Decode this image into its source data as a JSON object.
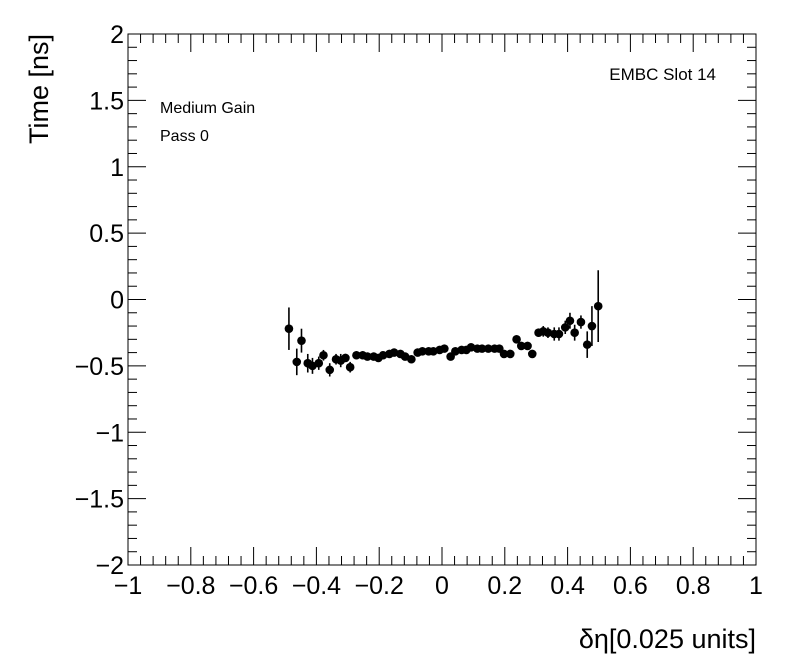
{
  "chart_data": {
    "type": "scatter",
    "title": "",
    "xlabel": "δη[0.025 units]",
    "ylabel": "Time [ns]",
    "xlim": [
      -1,
      1
    ],
    "ylim": [
      -2,
      2
    ],
    "x_ticks": [
      -1,
      -0.8,
      -0.6,
      -0.4,
      -0.2,
      0,
      0.2,
      0.4,
      0.6,
      0.8,
      1
    ],
    "x_tick_labels": [
      "−1",
      "−0.8",
      "−0.6",
      "−0.4",
      "−0.2",
      "0",
      "0.2",
      "0.4",
      "0.6",
      "0.8",
      "1"
    ],
    "y_ticks": [
      -2,
      -1.5,
      -1,
      -0.5,
      0,
      0.5,
      1,
      1.5,
      2
    ],
    "y_tick_labels": [
      "−2",
      "−1.5",
      "−1",
      "−0.5",
      "0",
      "0.5",
      "1",
      "1.5",
      "2"
    ],
    "annotations": {
      "label_gain": "Medium Gain",
      "label_pass": "Pass 0",
      "label_slot": "EMBC Slot 14"
    },
    "grid": false,
    "series": [
      {
        "marker": "circle",
        "color": "#000000",
        "points": [
          {
            "x": -0.4875,
            "y": -0.22,
            "err": 0.16
          },
          {
            "x": -0.4625,
            "y": -0.47,
            "err": 0.1
          },
          {
            "x": -0.4475,
            "y": -0.31,
            "err": 0.09
          },
          {
            "x": -0.4275,
            "y": -0.48,
            "err": 0.07
          },
          {
            "x": -0.4125,
            "y": -0.5,
            "err": 0.06
          },
          {
            "x": -0.3925,
            "y": -0.48,
            "err": 0.05
          },
          {
            "x": -0.3775,
            "y": -0.42,
            "err": 0.04
          },
          {
            "x": -0.3575,
            "y": -0.53,
            "err": 0.05
          },
          {
            "x": -0.3375,
            "y": -0.45,
            "err": 0.04
          },
          {
            "x": -0.3225,
            "y": -0.46,
            "err": 0.05
          },
          {
            "x": -0.3075,
            "y": -0.44,
            "err": 0.03
          },
          {
            "x": -0.2925,
            "y": -0.51,
            "err": 0.04
          },
          {
            "x": -0.2725,
            "y": -0.42,
            "err": 0.03
          },
          {
            "x": -0.2525,
            "y": -0.42,
            "err": 0.03
          },
          {
            "x": -0.2375,
            "y": -0.43,
            "err": 0.02
          },
          {
            "x": -0.2175,
            "y": -0.43,
            "err": 0.02
          },
          {
            "x": -0.2025,
            "y": -0.44,
            "err": 0.02
          },
          {
            "x": -0.1875,
            "y": -0.42,
            "err": 0.02
          },
          {
            "x": -0.1675,
            "y": -0.41,
            "err": 0.02
          },
          {
            "x": -0.1525,
            "y": -0.4,
            "err": 0.02
          },
          {
            "x": -0.1325,
            "y": -0.41,
            "err": 0.02
          },
          {
            "x": -0.1175,
            "y": -0.43,
            "err": 0.02
          },
          {
            "x": -0.0975,
            "y": -0.45,
            "err": 0.02
          },
          {
            "x": -0.0775,
            "y": -0.4,
            "err": 0.02
          },
          {
            "x": -0.0625,
            "y": -0.39,
            "err": 0.02
          },
          {
            "x": -0.0425,
            "y": -0.39,
            "err": 0.02
          },
          {
            "x": -0.0275,
            "y": -0.39,
            "err": 0.02
          },
          {
            "x": -0.0075,
            "y": -0.38,
            "err": 0.02
          },
          {
            "x": 0.0075,
            "y": -0.37,
            "err": 0.02
          },
          {
            "x": 0.0275,
            "y": -0.43,
            "err": 0.02
          },
          {
            "x": 0.0425,
            "y": -0.39,
            "err": 0.02
          },
          {
            "x": 0.0625,
            "y": -0.38,
            "err": 0.02
          },
          {
            "x": 0.0775,
            "y": -0.38,
            "err": 0.02
          },
          {
            "x": 0.0925,
            "y": -0.36,
            "err": 0.02
          },
          {
            "x": 0.1125,
            "y": -0.37,
            "err": 0.02
          },
          {
            "x": 0.1275,
            "y": -0.37,
            "err": 0.02
          },
          {
            "x": 0.1475,
            "y": -0.37,
            "err": 0.02
          },
          {
            "x": 0.1675,
            "y": -0.37,
            "err": 0.02
          },
          {
            "x": 0.1825,
            "y": -0.37,
            "err": 0.02
          },
          {
            "x": 0.1975,
            "y": -0.41,
            "err": 0.02
          },
          {
            "x": 0.2175,
            "y": -0.41,
            "err": 0.02
          },
          {
            "x": 0.2375,
            "y": -0.3,
            "err": 0.02
          },
          {
            "x": 0.2525,
            "y": -0.35,
            "err": 0.03
          },
          {
            "x": 0.2725,
            "y": -0.35,
            "err": 0.03
          },
          {
            "x": 0.2875,
            "y": -0.41,
            "err": 0.03
          },
          {
            "x": 0.3075,
            "y": -0.25,
            "err": 0.03
          },
          {
            "x": 0.3225,
            "y": -0.24,
            "err": 0.04
          },
          {
            "x": 0.3375,
            "y": -0.25,
            "err": 0.04
          },
          {
            "x": 0.3575,
            "y": -0.26,
            "err": 0.05
          },
          {
            "x": 0.3725,
            "y": -0.26,
            "err": 0.05
          },
          {
            "x": 0.3925,
            "y": -0.21,
            "err": 0.05
          },
          {
            "x": 0.4075,
            "y": -0.16,
            "err": 0.06
          },
          {
            "x": 0.4225,
            "y": -0.25,
            "err": 0.06
          },
          {
            "x": 0.4425,
            "y": -0.17,
            "err": 0.05
          },
          {
            "x": 0.4625,
            "y": -0.34,
            "err": 0.1
          },
          {
            "x": 0.4775,
            "y": -0.2,
            "err": 0.15
          },
          {
            "x": 0.4975,
            "y": -0.05,
            "err": 0.27
          }
        ]
      }
    ]
  }
}
